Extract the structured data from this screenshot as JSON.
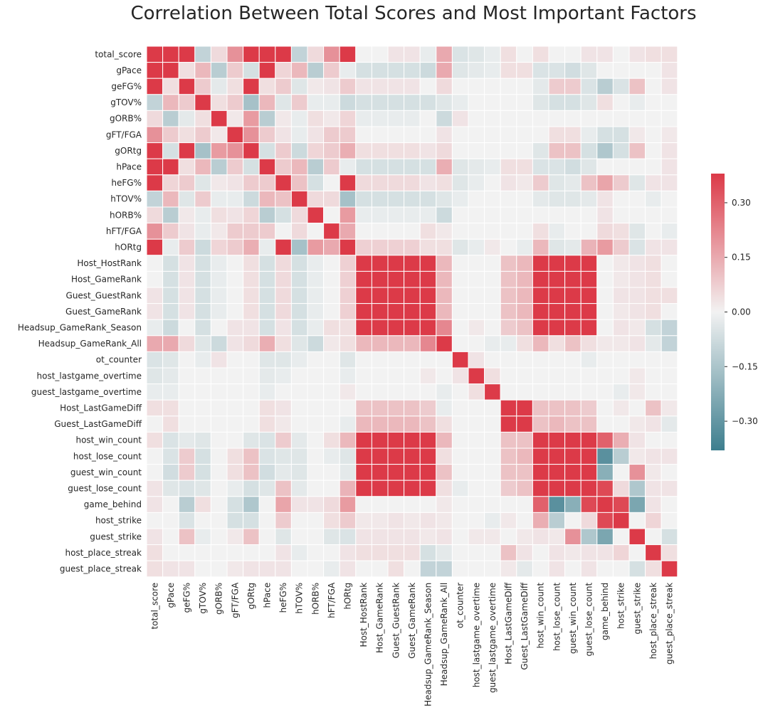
{
  "chart_data": {
    "type": "heatmap",
    "title": "Correlation Between Total Scores and Most Important Factors",
    "xlabel": "",
    "ylabel": "",
    "variables": [
      "total_score",
      "gPace",
      "geFG%",
      "gTOV%",
      "gORB%",
      "gFT/FGA",
      "gORtg",
      "hPace",
      "heFG%",
      "hTOV%",
      "hORB%",
      "hFT/FGA",
      "hORtg",
      "Host_HostRank",
      "Host_GameRank",
      "Guest_GuestRank",
      "Guest_GameRank",
      "Headsup_GameRank_Season",
      "Headsup_GameRank_All",
      "ot_counter",
      "host_lastgame_overtime",
      "guest_lastgame_overtime",
      "Host_LastGameDiff",
      "Guest_LastGameDiff",
      "host_win_count",
      "host_lose_count",
      "guest_win_count",
      "guest_lose_count",
      "game_behind",
      "host_strike",
      "guest_strike",
      "host_place_streak",
      "guest_place_streak"
    ],
    "values": [
      [
        0.4,
        0.4,
        0.4,
        -0.1,
        0.05,
        0.2,
        0.4,
        0.4,
        0.4,
        -0.1,
        0.05,
        0.2,
        0.4,
        0,
        0,
        0.03,
        0.03,
        -0.02,
        0.15,
        -0.05,
        -0.04,
        -0.02,
        0.04,
        0,
        0.04,
        0,
        0,
        0.03,
        0.03,
        0,
        0.03,
        0.04,
        0.04
      ],
      [
        0.4,
        0.4,
        0.04,
        0.12,
        -0.12,
        0.08,
        -0.06,
        0.4,
        0.06,
        0.12,
        -0.12,
        0.08,
        -0.02,
        -0.06,
        -0.06,
        -0.06,
        -0.06,
        -0.08,
        0.15,
        -0.04,
        -0.03,
        -0.02,
        0.04,
        0.04,
        -0.05,
        -0.05,
        -0.07,
        -0.04,
        0,
        0,
        0,
        0,
        0.03
      ],
      [
        0.4,
        0.04,
        0.4,
        0.08,
        -0.03,
        0.04,
        0.4,
        0.04,
        0.08,
        -0.04,
        0.02,
        0.03,
        0.08,
        0.03,
        0.03,
        0.03,
        0.03,
        0,
        0.05,
        0,
        0,
        0,
        0,
        0,
        -0.03,
        0.08,
        0.08,
        -0.05,
        -0.12,
        -0.05,
        0.1,
        0,
        0.03
      ],
      [
        -0.1,
        0.12,
        0.08,
        0.4,
        0.04,
        0.08,
        -0.16,
        0.12,
        -0.04,
        0.08,
        -0.02,
        -0.02,
        -0.08,
        -0.06,
        -0.06,
        -0.06,
        -0.06,
        -0.06,
        -0.04,
        -0.02,
        0,
        0,
        0,
        0,
        -0.04,
        -0.06,
        -0.06,
        -0.04,
        0.04,
        0,
        -0.02,
        0,
        0
      ],
      [
        0.05,
        -0.12,
        -0.03,
        0.04,
        0.4,
        0.02,
        0.18,
        -0.12,
        0.02,
        -0.02,
        0.04,
        0.02,
        0.06,
        -0.02,
        -0.02,
        -0.02,
        -0.02,
        0,
        -0.08,
        0.03,
        0,
        0,
        0,
        0,
        0,
        0,
        0,
        0,
        0,
        0,
        0,
        0,
        0
      ],
      [
        0.2,
        0.08,
        0.04,
        0.08,
        0.02,
        0.4,
        0.2,
        0.08,
        0.03,
        -0.02,
        0.03,
        0.08,
        0.08,
        0,
        0,
        0,
        0,
        0,
        0.03,
        0,
        0,
        0,
        0,
        0,
        0,
        0.04,
        0.04,
        -0.02,
        -0.06,
        -0.06,
        0.02,
        0,
        0.02
      ],
      [
        0.4,
        -0.06,
        0.4,
        -0.16,
        0.18,
        0.2,
        0.4,
        -0.06,
        0.08,
        -0.08,
        0.06,
        0.08,
        0.14,
        0.04,
        0.04,
        0.04,
        0.04,
        0.03,
        0.05,
        0,
        0,
        0,
        0,
        0,
        -0.04,
        0.1,
        0.1,
        -0.06,
        -0.14,
        -0.06,
        0.1,
        0,
        0.03
      ],
      [
        0.4,
        0.4,
        0.04,
        0.12,
        -0.12,
        0.08,
        -0.06,
        0.4,
        0.08,
        0.12,
        -0.12,
        0.08,
        -0.02,
        -0.06,
        -0.06,
        -0.06,
        -0.06,
        -0.06,
        0.14,
        -0.04,
        -0.03,
        -0.02,
        0.04,
        0.04,
        -0.05,
        -0.05,
        -0.07,
        -0.04,
        0,
        0,
        0,
        0,
        0.03
      ],
      [
        0.4,
        0.06,
        0.08,
        -0.04,
        0.02,
        0.03,
        0.08,
        0.08,
        0.4,
        0.1,
        -0.06,
        0,
        0.4,
        0.05,
        0.05,
        0.05,
        0.05,
        0.03,
        0.04,
        -0.04,
        -0.02,
        0,
        0.03,
        0.02,
        0.08,
        -0.04,
        -0.03,
        0.1,
        0.16,
        0.08,
        -0.04,
        0.03,
        0.03
      ],
      [
        -0.1,
        0.12,
        -0.04,
        0.08,
        -0.02,
        -0.02,
        -0.08,
        0.12,
        0.1,
        0.4,
        0.05,
        0.05,
        -0.16,
        -0.06,
        -0.06,
        -0.06,
        -0.06,
        -0.06,
        -0.04,
        -0.02,
        0,
        0,
        0,
        0,
        -0.03,
        -0.04,
        -0.04,
        -0.03,
        0.03,
        0,
        0,
        -0.02,
        0
      ],
      [
        0.05,
        -0.12,
        0.02,
        -0.02,
        0.04,
        0.03,
        0.06,
        -0.12,
        -0.06,
        0.05,
        0.4,
        0,
        0.18,
        -0.02,
        -0.02,
        -0.02,
        -0.02,
        -0.02,
        -0.08,
        0,
        0,
        0,
        0,
        0,
        0,
        0,
        0,
        0,
        0.03,
        0,
        0,
        0,
        0
      ],
      [
        0.2,
        0.08,
        0.03,
        -0.02,
        0.02,
        0.08,
        0.08,
        0.08,
        0,
        0.05,
        0,
        0.4,
        0.15,
        0,
        0,
        0,
        0,
        0.04,
        0.02,
        0,
        0,
        0,
        0,
        0,
        0.04,
        -0.02,
        0,
        0,
        0.05,
        0.04,
        -0.04,
        0,
        -0.02
      ],
      [
        0.4,
        -0.02,
        0.08,
        -0.08,
        0.06,
        0.08,
        0.14,
        -0.02,
        0.4,
        -0.16,
        0.18,
        0.15,
        0.4,
        0.07,
        0.07,
        0.07,
        0.07,
        0.04,
        0.04,
        -0.04,
        -0.02,
        0.02,
        0,
        -0.02,
        0.12,
        -0.04,
        -0.03,
        0.13,
        0.18,
        0.08,
        -0.05,
        0.03,
        0.03
      ],
      [
        0,
        -0.06,
        0.03,
        -0.06,
        -0.02,
        0,
        0.04,
        -0.06,
        0.05,
        -0.06,
        -0.02,
        0,
        0.07,
        0.4,
        0.4,
        0.4,
        0.4,
        0.4,
        0.12,
        0,
        0,
        0,
        0.1,
        0.12,
        0.4,
        0.4,
        0.4,
        0.4,
        0,
        0.02,
        0.03,
        0.04,
        0
      ],
      [
        0,
        -0.06,
        0.03,
        -0.06,
        -0.02,
        0,
        0.04,
        -0.06,
        0.05,
        -0.06,
        -0.02,
        0,
        0.07,
        0.4,
        0.4,
        0.4,
        0.4,
        0.4,
        0.12,
        0,
        0,
        0,
        0.1,
        0.12,
        0.4,
        0.4,
        0.4,
        0.4,
        0,
        0.02,
        0.03,
        0.04,
        0
      ],
      [
        0.03,
        -0.06,
        0.03,
        -0.06,
        -0.02,
        0,
        0.04,
        -0.06,
        0.05,
        -0.06,
        -0.02,
        0,
        0.07,
        0.4,
        0.4,
        0.4,
        0.4,
        0.4,
        0.12,
        0,
        0,
        0,
        0.1,
        0.12,
        0.4,
        0.4,
        0.4,
        0.4,
        0,
        0.03,
        0.03,
        0.04,
        0.04
      ],
      [
        0.03,
        -0.06,
        0.03,
        -0.06,
        -0.02,
        0,
        0.04,
        -0.06,
        0.05,
        -0.06,
        -0.02,
        0,
        0.07,
        0.4,
        0.4,
        0.4,
        0.4,
        0.4,
        0.12,
        0,
        0,
        0,
        0.1,
        0.12,
        0.4,
        0.4,
        0.4,
        0.4,
        0,
        0.02,
        0.03,
        0.04,
        0
      ],
      [
        -0.02,
        -0.08,
        0,
        -0.06,
        0,
        0.03,
        0.03,
        -0.06,
        0.03,
        -0.06,
        -0.02,
        0.04,
        0.04,
        0.4,
        0.4,
        0.4,
        0.4,
        0.4,
        0.22,
        0,
        0.02,
        0,
        0.08,
        0.1,
        0.4,
        0.4,
        0.4,
        0.4,
        0,
        0.03,
        0.02,
        -0.06,
        -0.1
      ],
      [
        0.15,
        0.15,
        0.05,
        -0.04,
        -0.08,
        0.03,
        0.05,
        0.14,
        0.04,
        -0.04,
        -0.08,
        0.02,
        0.04,
        0.12,
        0.12,
        0.12,
        0.12,
        0.22,
        0.4,
        0,
        0,
        -0.02,
        -0.02,
        0.04,
        0.12,
        0.04,
        0.1,
        0.04,
        0.02,
        0.02,
        0.03,
        -0.03,
        -0.1
      ],
      [
        -0.05,
        -0.04,
        0,
        -0.02,
        0.03,
        0,
        0,
        -0.04,
        -0.04,
        -0.02,
        0,
        0,
        -0.04,
        0,
        0,
        0,
        0,
        0,
        0,
        0.4,
        0.03,
        0,
        0,
        0,
        0,
        0,
        0,
        -0.02,
        0,
        0,
        0,
        0,
        0
      ],
      [
        -0.04,
        -0.03,
        0,
        0,
        0,
        0,
        0,
        -0.03,
        -0.02,
        0,
        0,
        0,
        -0.02,
        0,
        0,
        0,
        0,
        0.02,
        0,
        0.03,
        0.4,
        0.04,
        0,
        0,
        0,
        0,
        0,
        0,
        0,
        0,
        0.02,
        0,
        0
      ],
      [
        -0.02,
        -0.02,
        0,
        0,
        0,
        0,
        0,
        -0.02,
        0,
        0,
        0,
        0,
        0.02,
        0,
        0,
        0,
        0,
        0,
        -0.02,
        0,
        0.04,
        0.4,
        0,
        0,
        0,
        0,
        0,
        0,
        0,
        -0.02,
        0.02,
        0,
        0
      ],
      [
        0.04,
        0.04,
        0,
        0,
        0,
        0,
        0,
        0.04,
        0.03,
        0,
        0,
        0,
        0,
        0.1,
        0.1,
        0.1,
        0.1,
        0.08,
        -0.02,
        0,
        0,
        0,
        0.4,
        0.4,
        0.1,
        0.1,
        0.1,
        0.08,
        0,
        0.02,
        0,
        0.1,
        0.02
      ],
      [
        0,
        0.04,
        0,
        0,
        0,
        0,
        0,
        0.04,
        0.02,
        0,
        0,
        0,
        -0.02,
        0.12,
        0.12,
        0.12,
        0.12,
        0.1,
        0.04,
        0,
        0,
        0,
        0.4,
        0.4,
        0.1,
        0.12,
        0.1,
        0.1,
        0,
        0,
        0.02,
        0.03,
        -0.03
      ],
      [
        0.04,
        -0.05,
        -0.03,
        -0.04,
        0,
        0,
        -0.04,
        -0.05,
        0.08,
        -0.03,
        0,
        0.04,
        0.12,
        0.4,
        0.4,
        0.4,
        0.4,
        0.4,
        0.12,
        0,
        0,
        0,
        0.1,
        0.1,
        0.4,
        0.4,
        0.4,
        0.4,
        0.3,
        0.14,
        0.03,
        0,
        0
      ],
      [
        0,
        -0.05,
        0.08,
        -0.06,
        0,
        0.04,
        0.1,
        -0.05,
        -0.04,
        -0.04,
        0,
        -0.02,
        -0.04,
        0.4,
        0.4,
        0.4,
        0.4,
        0.4,
        0.04,
        0,
        0,
        0,
        0.1,
        0.12,
        0.4,
        0.4,
        0.4,
        0.4,
        -0.32,
        -0.12,
        0.02,
        0.03,
        0.03
      ],
      [
        0,
        -0.07,
        0.08,
        -0.06,
        0,
        0.04,
        0.1,
        -0.07,
        -0.03,
        -0.04,
        0,
        0,
        -0.03,
        0.4,
        0.4,
        0.4,
        0.4,
        0.4,
        0.1,
        0,
        0,
        0,
        0.1,
        0.1,
        0.4,
        0.4,
        0.4,
        0.4,
        -0.22,
        0,
        0.2,
        0.02,
        0
      ],
      [
        0.03,
        -0.04,
        -0.05,
        -0.04,
        0,
        -0.02,
        -0.06,
        -0.04,
        0.1,
        -0.03,
        0,
        0,
        0.13,
        0.4,
        0.4,
        0.4,
        0.4,
        0.4,
        0.04,
        -0.02,
        0,
        0,
        0.08,
        0.1,
        0.4,
        0.4,
        0.4,
        0.4,
        0.35,
        0.05,
        -0.14,
        0.03,
        0.03
      ],
      [
        0.03,
        0,
        -0.12,
        0.04,
        0,
        -0.06,
        -0.14,
        0,
        0.16,
        0.03,
        0.03,
        0.05,
        0.18,
        0,
        0,
        0,
        0,
        0,
        0.02,
        0,
        0,
        0,
        0,
        0,
        0.3,
        -0.32,
        -0.22,
        0.35,
        0.4,
        0.35,
        -0.25,
        0.03,
        0
      ],
      [
        0,
        0,
        -0.05,
        0,
        0,
        -0.06,
        -0.06,
        0,
        0.08,
        0,
        0,
        0.04,
        0.08,
        0.02,
        0.02,
        0.03,
        0.02,
        0.03,
        0.02,
        0,
        0,
        -0.02,
        0.02,
        0,
        0.14,
        -0.12,
        0,
        0.05,
        0.35,
        0.4,
        0,
        0.06,
        0
      ],
      [
        0.03,
        0,
        0.1,
        -0.02,
        0,
        0.02,
        0.1,
        0,
        -0.04,
        0,
        0,
        -0.04,
        -0.05,
        0.03,
        0.03,
        0.03,
        0.03,
        0.02,
        0.03,
        0,
        0.02,
        0.02,
        0,
        0.02,
        0.03,
        0.02,
        0.2,
        -0.14,
        -0.25,
        0,
        0.4,
        0,
        -0.06
      ],
      [
        0.04,
        0,
        0,
        0,
        0,
        0,
        0,
        0,
        0.03,
        -0.02,
        0,
        0,
        0.03,
        0.04,
        0.04,
        0.04,
        0.04,
        -0.06,
        -0.03,
        0,
        0,
        0,
        0.1,
        0.03,
        0,
        0.03,
        0.02,
        0.03,
        0.03,
        0.06,
        0,
        0.4,
        0.04
      ],
      [
        0.04,
        0.03,
        0.03,
        0,
        0,
        0.02,
        0.03,
        0.03,
        0.03,
        0,
        0,
        -0.02,
        0.03,
        0,
        0,
        0.04,
        0,
        -0.1,
        -0.1,
        0,
        0,
        0,
        0.02,
        -0.03,
        0,
        0.03,
        0,
        0.03,
        0,
        0,
        -0.06,
        0.04,
        0.4
      ]
    ],
    "colorbar": {
      "vmin": -0.38,
      "vmax": 0.38,
      "ticks": [
        "0.30",
        "0.15",
        "0.00",
        "−0.15",
        "−0.30"
      ],
      "tick_values": [
        0.3,
        0.15,
        0.0,
        -0.15,
        -0.3
      ]
    },
    "colors": {
      "negative": "#3d7e8e",
      "neutral": "#f2f2f2",
      "positive": "#dc3a48"
    },
    "grid": false
  }
}
